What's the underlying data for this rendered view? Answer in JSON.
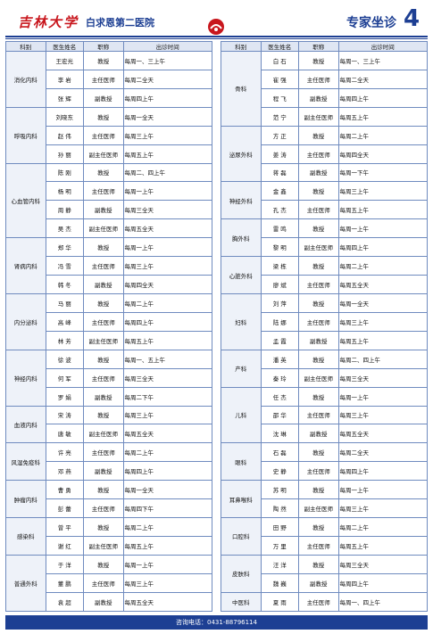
{
  "header": {
    "university": "吉林大学",
    "hospital": "白求恩第二医院",
    "section": "专家坐诊",
    "page": "4"
  },
  "columns": [
    "科别",
    "医生姓名",
    "职称",
    "出诊时间"
  ],
  "left": {
    "groups": [
      {
        "dept": "消化内科",
        "doctors": [
          [
            "王宏光",
            "教授",
            "每周一、三上午"
          ],
          [
            "李 岩",
            "主任医师",
            "每周二全天"
          ],
          [
            "张 辉",
            "副教授",
            "每周四上午"
          ]
        ]
      },
      {
        "dept": "呼吸内科",
        "doctors": [
          [
            "刘晓东",
            "教授",
            "每周一全天"
          ],
          [
            "赵 伟",
            "主任医师",
            "每周三上午"
          ],
          [
            "孙 丽",
            "副主任医师",
            "每周五上午"
          ]
        ]
      },
      {
        "dept": "心血管内科",
        "doctors": [
          [
            "陈 刚",
            "教授",
            "每周二、四上午"
          ],
          [
            "杨 明",
            "主任医师",
            "每周一上午"
          ],
          [
            "周 静",
            "副教授",
            "每周三全天"
          ],
          [
            "吴 杰",
            "副主任医师",
            "每周五全天"
          ]
        ]
      },
      {
        "dept": "肾病内科",
        "doctors": [
          [
            "郑 华",
            "教授",
            "每周一上午"
          ],
          [
            "冯 雪",
            "主任医师",
            "每周三上午"
          ],
          [
            "韩 冬",
            "副教授",
            "每周四全天"
          ]
        ]
      },
      {
        "dept": "内分泌科",
        "doctors": [
          [
            "马 丽",
            "教授",
            "每周二上午"
          ],
          [
            "高 峰",
            "主任医师",
            "每周四上午"
          ],
          [
            "林 芳",
            "副主任医师",
            "每周五上午"
          ]
        ]
      },
      {
        "dept": "神经内科",
        "doctors": [
          [
            "徐 波",
            "教授",
            "每周一、五上午"
          ],
          [
            "何 军",
            "主任医师",
            "每周三全天"
          ],
          [
            "罗 娟",
            "副教授",
            "每周二下午"
          ]
        ]
      },
      {
        "dept": "血液内科",
        "doctors": [
          [
            "宋 涛",
            "教授",
            "每周三上午"
          ],
          [
            "唐 敏",
            "副主任医师",
            "每周五全天"
          ]
        ]
      },
      {
        "dept": "风湿免疫科",
        "doctors": [
          [
            "许 亮",
            "主任医师",
            "每周二上午"
          ],
          [
            "邓 燕",
            "副教授",
            "每周四上午"
          ]
        ]
      },
      {
        "dept": "肿瘤内科",
        "doctors": [
          [
            "曹 勇",
            "教授",
            "每周一全天"
          ],
          [
            "彭 蕾",
            "主任医师",
            "每周四下午"
          ]
        ]
      },
      {
        "dept": "感染科",
        "doctors": [
          [
            "曾 平",
            "教授",
            "每周二上午"
          ],
          [
            "谢 红",
            "副主任医师",
            "每周五上午"
          ]
        ]
      },
      {
        "dept": "普通外科",
        "doctors": [
          [
            "于 洋",
            "教授",
            "每周一上午"
          ],
          [
            "董 鹏",
            "主任医师",
            "每周三上午"
          ],
          [
            "袁 超",
            "副教授",
            "每周五全天"
          ]
        ]
      }
    ]
  },
  "right": {
    "groups": [
      {
        "dept": "骨科",
        "doctors": [
          [
            "白 石",
            "教授",
            "每周一、三上午"
          ],
          [
            "崔 强",
            "主任医师",
            "每周二全天"
          ],
          [
            "程 飞",
            "副教授",
            "每周四上午"
          ],
          [
            "范 宁",
            "副主任医师",
            "每周五上午"
          ]
        ]
      },
      {
        "dept": "泌尿外科",
        "doctors": [
          [
            "方 正",
            "教授",
            "每周二上午"
          ],
          [
            "姜 涛",
            "主任医师",
            "每周四全天"
          ],
          [
            "蒋 磊",
            "副教授",
            "每周一下午"
          ]
        ]
      },
      {
        "dept": "神经外科",
        "doctors": [
          [
            "金 鑫",
            "教授",
            "每周三上午"
          ],
          [
            "孔 杰",
            "主任医师",
            "每周五上午"
          ]
        ]
      },
      {
        "dept": "胸外科",
        "doctors": [
          [
            "雷 鸣",
            "教授",
            "每周一上午"
          ],
          [
            "黎 明",
            "副主任医师",
            "每周四上午"
          ]
        ]
      },
      {
        "dept": "心脏外科",
        "doctors": [
          [
            "梁 栋",
            "教授",
            "每周二上午"
          ],
          [
            "廖 斌",
            "主任医师",
            "每周五全天"
          ]
        ]
      },
      {
        "dept": "妇科",
        "doctors": [
          [
            "刘 萍",
            "教授",
            "每周一全天"
          ],
          [
            "陆 娜",
            "主任医师",
            "每周三上午"
          ],
          [
            "孟 霞",
            "副教授",
            "每周五上午"
          ]
        ]
      },
      {
        "dept": "产科",
        "doctors": [
          [
            "潘 英",
            "教授",
            "每周二、四上午"
          ],
          [
            "秦 玲",
            "副主任医师",
            "每周三全天"
          ]
        ]
      },
      {
        "dept": "儿科",
        "doctors": [
          [
            "任 杰",
            "教授",
            "每周一上午"
          ],
          [
            "邵 华",
            "主任医师",
            "每周三上午"
          ],
          [
            "沈 琳",
            "副教授",
            "每周五全天"
          ]
        ]
      },
      {
        "dept": "眼科",
        "doctors": [
          [
            "石 磊",
            "教授",
            "每周二全天"
          ],
          [
            "史 静",
            "主任医师",
            "每周四上午"
          ]
        ]
      },
      {
        "dept": "耳鼻喉科",
        "doctors": [
          [
            "苏 明",
            "教授",
            "每周一上午"
          ],
          [
            "陶 然",
            "副主任医师",
            "每周三上午"
          ]
        ]
      },
      {
        "dept": "口腔科",
        "doctors": [
          [
            "田 野",
            "教授",
            "每周二上午"
          ],
          [
            "万 里",
            "主任医师",
            "每周五上午"
          ]
        ]
      },
      {
        "dept": "皮肤科",
        "doctors": [
          [
            "汪 洋",
            "教授",
            "每周三全天"
          ],
          [
            "魏 巍",
            "副教授",
            "每周四上午"
          ]
        ]
      },
      {
        "dept": "中医科",
        "doctors": [
          [
            "夏 雨",
            "主任医师",
            "每周一、四上午"
          ]
        ]
      }
    ]
  },
  "footer": "咨询电话：0431-88796114"
}
